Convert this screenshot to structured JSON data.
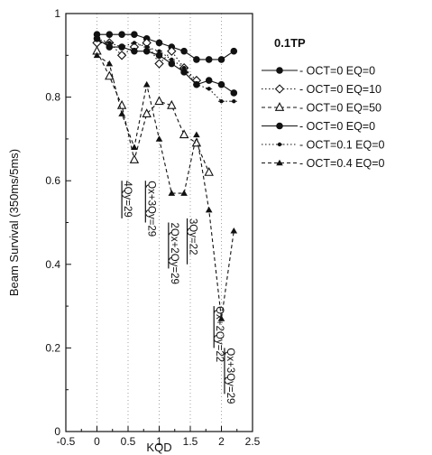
{
  "chart_data": {
    "type": "line",
    "xlabel": "KQD",
    "ylabel": "Beam Survival (350ms/5ms)",
    "xlim": [
      -0.5,
      2.5
    ],
    "ylim": [
      0,
      1
    ],
    "xticks": [
      "-0.5",
      "0",
      "0.5",
      "1",
      "1.5",
      "2",
      "2.5"
    ],
    "yticks": [
      "0",
      "0.2",
      "0.4",
      "0.6",
      "0.8",
      "1"
    ],
    "grid": "vertical-lines-dotted",
    "legend_title": "0.1TP",
    "legend_position": "right",
    "series": [
      {
        "name": "OCT=0    EQ=0",
        "line": "solid",
        "marker": "circle",
        "x": [
          0,
          0.2,
          0.4,
          0.6,
          0.8,
          1.0,
          1.2,
          1.4,
          1.6,
          1.8,
          2.0,
          2.2
        ],
        "y": [
          0.95,
          0.95,
          0.95,
          0.95,
          0.94,
          0.93,
          0.92,
          0.91,
          0.89,
          0.89,
          0.89,
          0.91
        ]
      },
      {
        "name": "OCT=0    EQ=10",
        "line": "dotted",
        "marker": "diamond-open",
        "x": [
          0,
          0.2,
          0.4,
          0.6,
          0.8,
          1.0,
          1.2,
          1.4,
          1.6
        ],
        "y": [
          0.93,
          0.93,
          0.9,
          0.92,
          0.93,
          0.88,
          0.91,
          0.87,
          0.84
        ]
      },
      {
        "name": "OCT=0    EQ=50",
        "line": "dashed",
        "marker": "triangle-open",
        "x": [
          0,
          0.2,
          0.4,
          0.6,
          0.8,
          1.0,
          1.2,
          1.4,
          1.6,
          1.8
        ],
        "y": [
          0.91,
          0.85,
          0.78,
          0.65,
          0.76,
          0.79,
          0.78,
          0.71,
          0.69,
          0.62
        ]
      },
      {
        "name": "OCT=0    EQ=0",
        "line": "solid",
        "marker": "circle",
        "x": [
          0,
          0.2,
          0.4,
          0.6,
          0.8,
          1.0,
          1.2,
          1.4,
          1.6,
          1.8,
          2.0,
          2.2
        ],
        "y": [
          0.94,
          0.92,
          0.92,
          0.91,
          0.91,
          0.9,
          0.88,
          0.86,
          0.83,
          0.84,
          0.83,
          0.81
        ]
      },
      {
        "name": "OCT=0.1  EQ=0",
        "line": "dotted",
        "marker": "plus-dot",
        "x": [
          0,
          0.2,
          0.4,
          0.6,
          0.8,
          1.0,
          1.2,
          1.4,
          1.6,
          1.8,
          2.0,
          2.2
        ],
        "y": [
          0.94,
          0.93,
          0.92,
          0.93,
          0.92,
          0.91,
          0.89,
          0.87,
          0.83,
          0.82,
          0.79,
          0.79
        ]
      },
      {
        "name": "OCT=0.4  EQ=0",
        "line": "dashed",
        "marker": "triangle-filled",
        "x": [
          0,
          0.2,
          0.4,
          0.6,
          0.8,
          1.0,
          1.2,
          1.4,
          1.6,
          1.8,
          2.0,
          2.2
        ],
        "y": [
          0.9,
          0.88,
          0.76,
          0.68,
          0.83,
          0.7,
          0.57,
          0.57,
          0.71,
          0.53,
          0.27,
          0.48
        ]
      }
    ],
    "annotations": [
      {
        "text": "4Qy=29",
        "x": 0.4,
        "y_top": 0.6,
        "y_bottom": 0.51
      },
      {
        "text": "Qx+3Qy=29",
        "x": 0.78,
        "y_top": 0.6,
        "y_bottom": 0.5
      },
      {
        "text": "2Qx+2Qy=29",
        "x": 1.15,
        "y_top": 0.5,
        "y_bottom": 0.39
      },
      {
        "text": "3Qy=22",
        "x": 1.45,
        "y_top": 0.51,
        "y_bottom": 0.4
      },
      {
        "text": "Qx+2Qy=22",
        "x": 1.88,
        "y_top": 0.3,
        "y_bottom": 0.2
      },
      {
        "text": "Qx+3Qy=29",
        "x": 2.05,
        "y_top": 0.2,
        "y_bottom": 0.09
      }
    ]
  }
}
